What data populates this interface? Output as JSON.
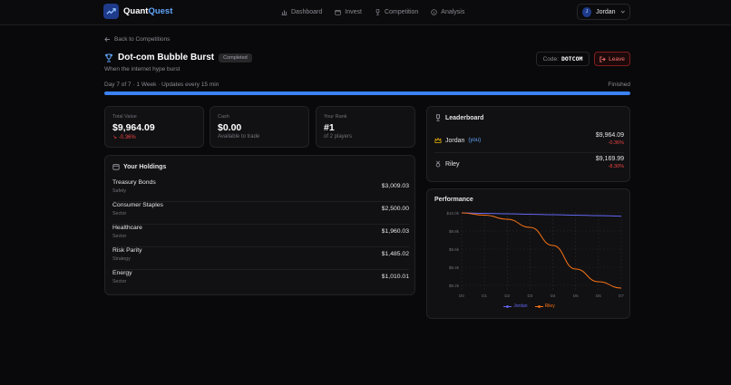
{
  "brand": {
    "name_part1": "Quant",
    "name_part2": "Quest"
  },
  "nav": {
    "items": [
      {
        "label": "Dashboard",
        "icon": "chart-bars-icon"
      },
      {
        "label": "Invest",
        "icon": "wallet-icon"
      },
      {
        "label": "Competition",
        "icon": "trophy-icon"
      },
      {
        "label": "Analysis",
        "icon": "info-circle-icon"
      }
    ]
  },
  "user": {
    "initial": "J",
    "name": "Jordan"
  },
  "back_label": "Back to Competitions",
  "competition": {
    "title": "Dot-com Bubble Burst",
    "status": "Completed",
    "subtitle": "When the internet hype burst",
    "code_label": "Code:",
    "code": "DOTCOM",
    "leave_label": "Leave",
    "progress_text": "Day 7 of 7 · 1 Week · Updates every 15 min",
    "progress_status": "Finished",
    "progress_fraction": 1.0
  },
  "stats": {
    "total": {
      "label": "Total Value",
      "value": "$9,964.09",
      "change": "-0.36%"
    },
    "cash": {
      "label": "Cash",
      "value": "$0.00",
      "sub": "Available to trade"
    },
    "rank": {
      "label": "Your Rank",
      "value": "#1",
      "sub": "of 2 players"
    }
  },
  "holdings": {
    "title": "Your Holdings",
    "items": [
      {
        "name": "Treasury Bonds",
        "type": "Safety",
        "value": "$3,009.03"
      },
      {
        "name": "Consumer Staples",
        "type": "Sector",
        "value": "$2,500.00"
      },
      {
        "name": "Healthcare",
        "type": "Sector",
        "value": "$1,960.03"
      },
      {
        "name": "Risk Parity",
        "type": "Strategy",
        "value": "$1,485.02"
      },
      {
        "name": "Energy",
        "type": "Sector",
        "value": "$1,010.01"
      }
    ]
  },
  "leaderboard": {
    "title": "Leaderboard",
    "players": [
      {
        "name": "Jordan",
        "you": "(you)",
        "value": "$9,964.09",
        "change": "-0.36%"
      },
      {
        "name": "Riley",
        "you": "",
        "value": "$9,169.99",
        "change": "-8.30%"
      }
    ]
  },
  "performance": {
    "title": "Performance",
    "colors": {
      "jordan": "#6366f1",
      "riley": "#f97316"
    },
    "chart_data": {
      "type": "line",
      "x": [
        "D0",
        "D1",
        "D2",
        "D3",
        "D4",
        "D5",
        "D6",
        "D7"
      ],
      "yticks": [
        "$10.0k",
        "$9.8k",
        "$9.6k",
        "$9.4k",
        "$9.2k"
      ],
      "ylim": [
        9150,
        10010
      ],
      "series": [
        {
          "name": "Jordan",
          "values": [
            10000,
            9995,
            9990,
            9985,
            9980,
            9975,
            9970,
            9964
          ]
        },
        {
          "name": "Riley",
          "values": [
            10000,
            9975,
            9930,
            9840,
            9640,
            9380,
            9240,
            9170
          ]
        }
      ],
      "grid": true,
      "legend": "bottom"
    }
  }
}
